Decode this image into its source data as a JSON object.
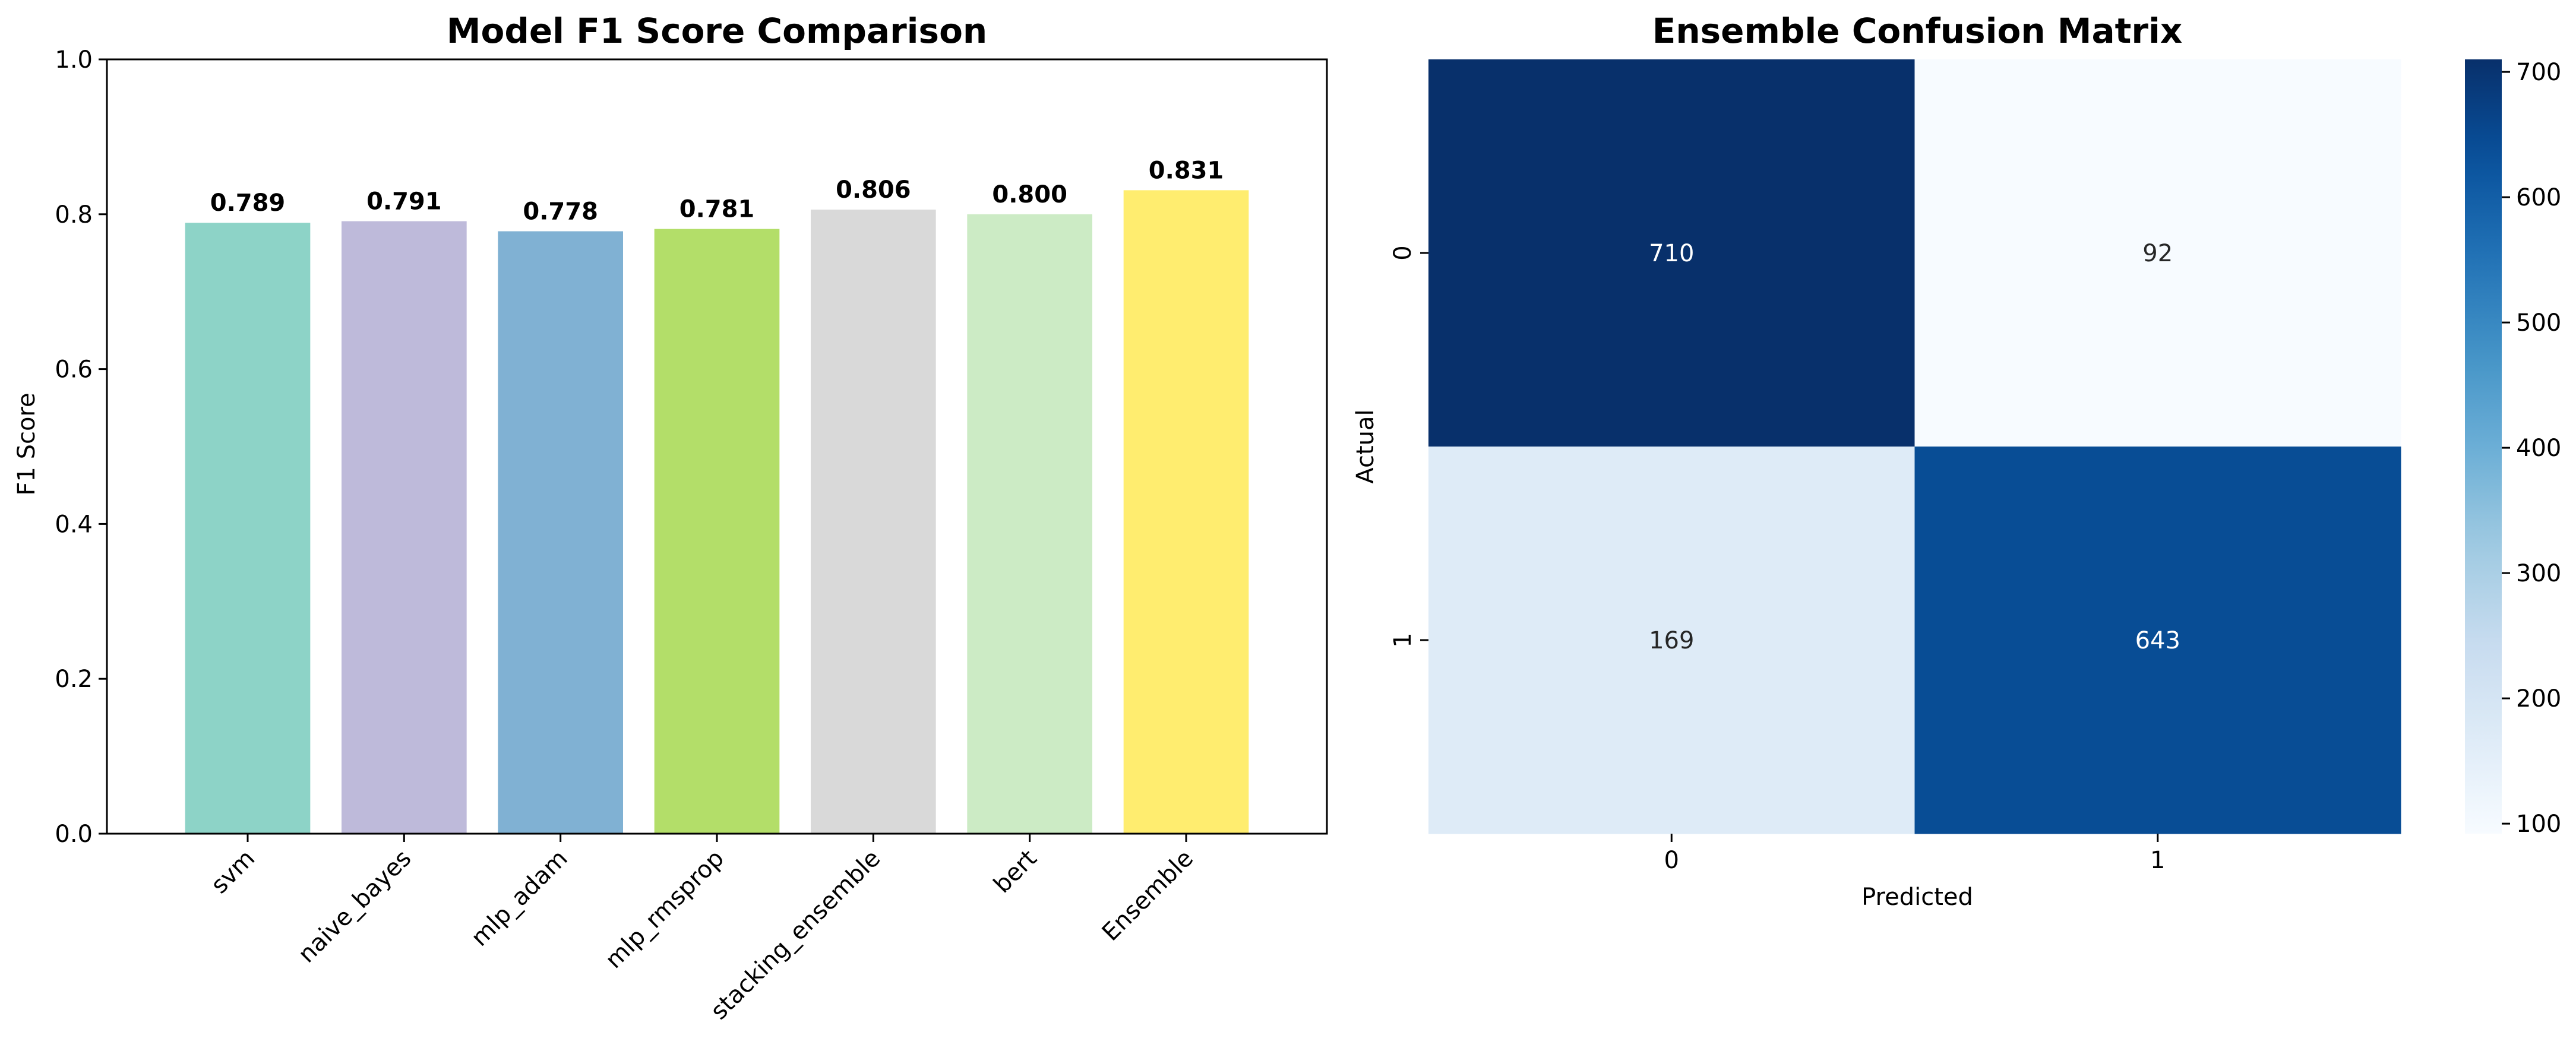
{
  "chart_data": [
    {
      "type": "bar",
      "title": "Model F1 Score Comparison",
      "xlabel": "",
      "ylabel": "F1 Score",
      "ylim": [
        0,
        1.0
      ],
      "yticks": [
        "0.0",
        "0.2",
        "0.4",
        "0.6",
        "0.8",
        "1.0"
      ],
      "categories": [
        "svm",
        "naive_bayes",
        "mlp_adam",
        "mlp_rmsprop",
        "stacking_ensemble",
        "bert",
        "Ensemble"
      ],
      "values": [
        0.789,
        0.791,
        0.778,
        0.781,
        0.806,
        0.8,
        0.831
      ],
      "value_labels": [
        "0.789",
        "0.791",
        "0.778",
        "0.781",
        "0.806",
        "0.800",
        "0.831"
      ],
      "colors": [
        "#8dd3c7",
        "#bebada",
        "#80b1d3",
        "#b3de69",
        "#d9d9d9",
        "#ccebc5",
        "#ffed6f"
      ],
      "grid": false,
      "tick_rotation": "45 degrees"
    },
    {
      "type": "heatmap",
      "title": "Ensemble Confusion Matrix",
      "xlabel": "Predicted",
      "ylabel": "Actual",
      "x_categories": [
        "0",
        "1"
      ],
      "y_categories": [
        "0",
        "1"
      ],
      "values": [
        [
          710,
          92
        ],
        [
          169,
          643
        ]
      ],
      "colormap": "Blues",
      "colorbar_range": [
        92,
        710
      ],
      "colorbar_ticks": [
        "100",
        "200",
        "300",
        "400",
        "500",
        "600",
        "700"
      ],
      "annot_light_color": "#ffffff",
      "annot_dark_color": "#262626"
    }
  ]
}
